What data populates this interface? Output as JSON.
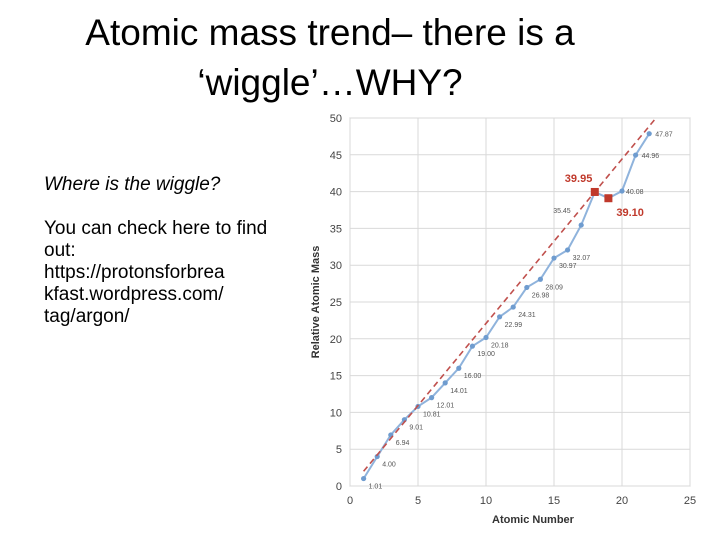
{
  "slide": {
    "title_line1": "Atomic mass trend– there is a",
    "title_line2": "‘wiggle’…WHY?",
    "question": "Where is the wiggle?",
    "check_text": "You can check  here to find out:",
    "link_line1": "https://protonsforbrea",
    "link_line2": "kfast.wordpress.com/",
    "link_line3": "tag/argon/"
  },
  "chart_data": {
    "type": "line",
    "xlabel": "Atomic Number",
    "ylabel": "Relative Atomic Mass",
    "xlim": [
      0,
      25
    ],
    "ylim": [
      0,
      50
    ],
    "x_ticks": [
      "0",
      "5",
      "10",
      "15",
      "20",
      "25"
    ],
    "y_ticks": [
      "0",
      "5",
      "10",
      "15",
      "20",
      "25",
      "30",
      "35",
      "40",
      "45",
      "50"
    ],
    "grid": true,
    "series": [
      {
        "style": "solid-line-markers",
        "color": "#8fb3dc",
        "x": [
          1,
          2,
          3,
          4,
          5,
          6,
          7,
          8,
          9,
          10,
          11,
          12,
          13,
          14,
          15,
          16,
          17,
          18,
          19,
          20,
          21,
          22
        ],
        "y": [
          1.01,
          4.0,
          6.94,
          9.01,
          10.81,
          12.01,
          14.01,
          16.0,
          19.0,
          20.18,
          22.99,
          24.31,
          26.98,
          28.09,
          30.97,
          32.07,
          35.45,
          39.95,
          39.1,
          40.08,
          44.96,
          47.87
        ]
      },
      {
        "style": "dashed-trend",
        "color": "#c0504d",
        "x": [
          1,
          22.5
        ],
        "y": [
          2.0,
          50.0
        ]
      }
    ],
    "highlighted_points": [
      {
        "x": 18,
        "y": 39.95,
        "label": "39.95",
        "color": "#c0392b"
      },
      {
        "x": 19,
        "y": 39.1,
        "label": "39.10",
        "color": "#c0392b"
      }
    ],
    "point_labels": [
      {
        "x": 1,
        "y": 1.01,
        "label": "1.01"
      },
      {
        "x": 2,
        "y": 4.0,
        "label": "4.00"
      },
      {
        "x": 3,
        "y": 6.94,
        "label": "6.94"
      },
      {
        "x": 4,
        "y": 9.01,
        "label": "9.01"
      },
      {
        "x": 5,
        "y": 10.81,
        "label": "10.81"
      },
      {
        "x": 6,
        "y": 12.01,
        "label": "12.01"
      },
      {
        "x": 7,
        "y": 14.01,
        "label": "14.01"
      },
      {
        "x": 8,
        "y": 16.0,
        "label": "16.00"
      },
      {
        "x": 9,
        "y": 19.0,
        "label": "19.00"
      },
      {
        "x": 10,
        "y": 20.18,
        "label": "20.18"
      },
      {
        "x": 11,
        "y": 22.99,
        "label": "22.99"
      },
      {
        "x": 12,
        "y": 24.31,
        "label": "24.31"
      },
      {
        "x": 13,
        "y": 26.98,
        "label": "26.98"
      },
      {
        "x": 14,
        "y": 28.09,
        "label": "28.09"
      },
      {
        "x": 15,
        "y": 30.97,
        "label": "30.97"
      },
      {
        "x": 16,
        "y": 32.07,
        "label": "32.07"
      },
      {
        "x": 17,
        "y": 35.45,
        "label": "35.45"
      },
      {
        "x": 20,
        "y": 40.08,
        "label": "40.08"
      },
      {
        "x": 21,
        "y": 44.96,
        "label": "44.96"
      },
      {
        "x": 22,
        "y": 47.87,
        "label": "47.87"
      }
    ]
  }
}
